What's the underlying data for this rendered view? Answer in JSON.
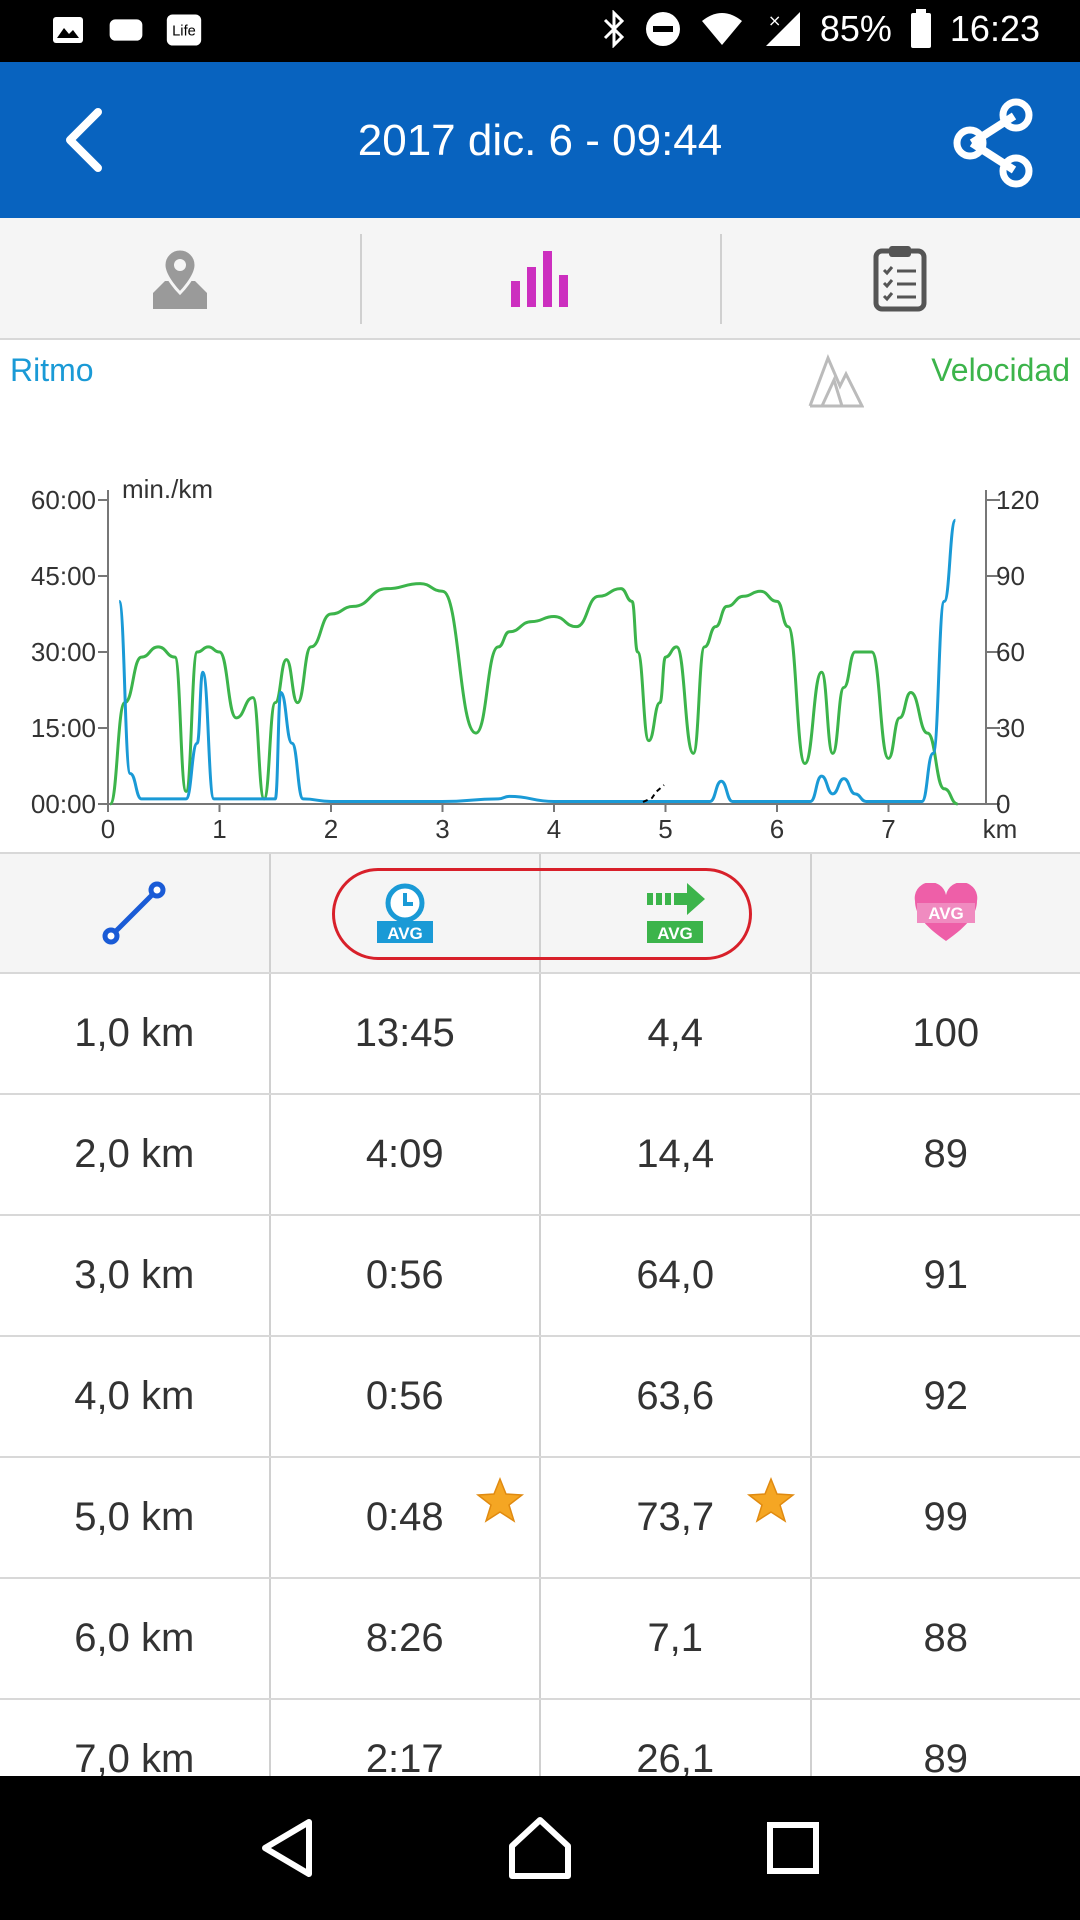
{
  "status_bar": {
    "battery_percent": "85%",
    "time": "16:23",
    "icons": [
      "image-icon",
      "message-icon",
      "lifeapp-icon",
      "bluetooth-icon",
      "do-not-disturb-icon",
      "wifi-icon",
      "signal-icon",
      "battery-icon"
    ],
    "lifeapp_label": "Life"
  },
  "app_bar": {
    "title": "2017 dic. 6 - 09:44",
    "back_icon": "chevron-left-icon",
    "share_icon": "share-icon",
    "background": "#0863bf"
  },
  "tabs": [
    {
      "icon": "map-pin-icon",
      "active": false
    },
    {
      "icon": "bar-chart-icon",
      "active": true,
      "color": "#cc2fbf"
    },
    {
      "icon": "clipboard-icon",
      "active": false
    }
  ],
  "chart": {
    "legend_left": "Ritmo",
    "legend_right": "Velocidad",
    "pace_color": "#1a9ad6",
    "speed_color": "#3cb44b",
    "unit_label": "min./km",
    "x_unit": "km"
  },
  "chart_data": {
    "type": "line",
    "x_label": "km",
    "y_left_label": "min./km",
    "x_ticks": [
      "0",
      "1",
      "2",
      "3",
      "4",
      "5",
      "6",
      "7"
    ],
    "y_left_ticks": [
      "60:00",
      "45:00",
      "30:00",
      "15:00",
      "00:00"
    ],
    "y_right_ticks": [
      "120",
      "90",
      "60",
      "30",
      "0"
    ],
    "xlim": [
      0,
      8
    ],
    "y_left_lim": [
      0,
      60
    ],
    "y_right_lim": [
      0,
      120
    ],
    "series": [
      {
        "name": "Velocidad",
        "axis": "right",
        "color": "#3cb44b",
        "x": [
          0.02,
          0.15,
          0.3,
          0.45,
          0.6,
          0.7,
          0.8,
          0.9,
          1.0,
          1.15,
          1.3,
          1.4,
          1.5,
          1.6,
          1.7,
          1.82,
          2.0,
          2.2,
          2.5,
          2.8,
          3.0,
          3.3,
          3.5,
          3.6,
          3.8,
          4.0,
          4.2,
          4.4,
          4.6,
          4.7,
          4.75,
          4.85,
          4.95,
          5.0,
          5.1,
          5.25,
          5.35,
          5.45,
          5.55,
          5.7,
          5.85,
          6.0,
          6.1,
          6.25,
          6.4,
          6.5,
          6.6,
          6.7,
          6.85,
          7.0,
          7.1,
          7.2,
          7.35,
          7.5,
          7.62
        ],
        "values": [
          0,
          40,
          58,
          62,
          58,
          5,
          60,
          62,
          60,
          34,
          42,
          2,
          40,
          57,
          40,
          62,
          75,
          78,
          85,
          87,
          84,
          28,
          62,
          68,
          72,
          74,
          70,
          82,
          85,
          80,
          60,
          25,
          40,
          58,
          62,
          20,
          62,
          70,
          78,
          82,
          84,
          80,
          70,
          16,
          52,
          20,
          46,
          60,
          60,
          18,
          34,
          44,
          28,
          6,
          0
        ]
      },
      {
        "name": "Ritmo",
        "axis": "left",
        "color": "#1a9ad6",
        "x": [
          0.1,
          0.2,
          0.3,
          0.5,
          0.7,
          0.8,
          0.85,
          0.95,
          1.2,
          1.4,
          1.5,
          1.55,
          1.65,
          1.75,
          2.0,
          2.5,
          3.0,
          3.5,
          3.6,
          4.0,
          4.5,
          5.0,
          5.2,
          5.4,
          5.5,
          5.6,
          6.0,
          6.3,
          6.4,
          6.5,
          6.6,
          6.7,
          6.8,
          7.0,
          7.3,
          7.4,
          7.5,
          7.6
        ],
        "values": [
          40,
          6,
          1,
          1,
          1,
          12,
          26,
          1,
          1,
          1,
          1,
          22,
          12,
          1,
          0.5,
          0.5,
          0.5,
          1,
          1.5,
          0.5,
          0.5,
          0.5,
          0.5,
          0.5,
          4.5,
          0.5,
          0.5,
          0.5,
          5.5,
          2,
          5,
          2,
          0.5,
          0.5,
          0.5,
          10,
          40,
          56
        ]
      }
    ]
  },
  "table": {
    "header_icons": [
      {
        "icon": "route-icon",
        "color": "#1a5bd6"
      },
      {
        "icon": "avg-time-icon",
        "label": "AVG",
        "color": "#1a9ad6"
      },
      {
        "icon": "avg-speed-icon",
        "label": "AVG",
        "color": "#3cb44b"
      },
      {
        "icon": "avg-heart-icon",
        "label": "AVG",
        "color": "#ee5fa8"
      }
    ],
    "rows": [
      {
        "distance": "1,0 km",
        "time": "13:45",
        "speed": "4,4",
        "heart": "100",
        "time_star": false,
        "speed_star": false
      },
      {
        "distance": "2,0 km",
        "time": "4:09",
        "speed": "14,4",
        "heart": "89",
        "time_star": false,
        "speed_star": false
      },
      {
        "distance": "3,0 km",
        "time": "0:56",
        "speed": "64,0",
        "heart": "91",
        "time_star": false,
        "speed_star": false
      },
      {
        "distance": "4,0 km",
        "time": "0:56",
        "speed": "63,6",
        "heart": "92",
        "time_star": false,
        "speed_star": false
      },
      {
        "distance": "5,0 km",
        "time": "0:48",
        "speed": "73,7",
        "heart": "99",
        "time_star": true,
        "speed_star": true
      },
      {
        "distance": "6,0 km",
        "time": "8:26",
        "speed": "7,1",
        "heart": "88",
        "time_star": false,
        "speed_star": false
      },
      {
        "distance": "7,0 km",
        "time": "2:17",
        "speed": "26,1",
        "heart": "89",
        "time_star": false,
        "speed_star": false
      }
    ]
  },
  "nav_bar": {
    "icons": [
      "back-triangle-icon",
      "home-icon",
      "recents-icon"
    ]
  }
}
